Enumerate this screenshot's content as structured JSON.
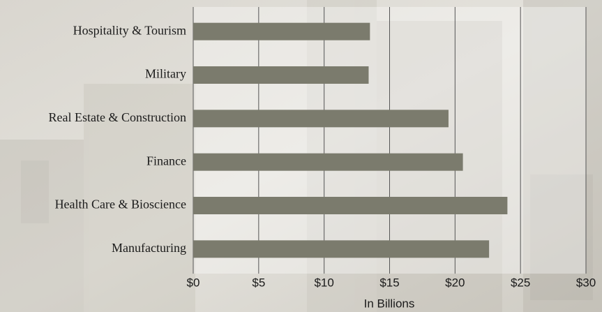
{
  "chart_data": {
    "type": "bar",
    "orientation": "horizontal",
    "x_label": "In Billions",
    "categories": [
      "Hospitality & Tourism",
      "Military",
      "Real Estate & Construction",
      "Finance",
      "Health Care & Bioscience",
      "Manufacturing"
    ],
    "values": [
      13.5,
      13.4,
      19.5,
      20.6,
      24.0,
      22.6
    ],
    "color": "#7b7b6d",
    "xlim": [
      0,
      30
    ],
    "xticks": [
      {
        "value": 0,
        "label": "$0"
      },
      {
        "value": 5,
        "label": "$5"
      },
      {
        "value": 10,
        "label": "$10"
      },
      {
        "value": 15,
        "label": "$15"
      },
      {
        "value": 20,
        "label": "$20"
      },
      {
        "value": 25,
        "label": "$25"
      },
      {
        "value": 30,
        "label": "$30"
      }
    ],
    "grid": true
  }
}
